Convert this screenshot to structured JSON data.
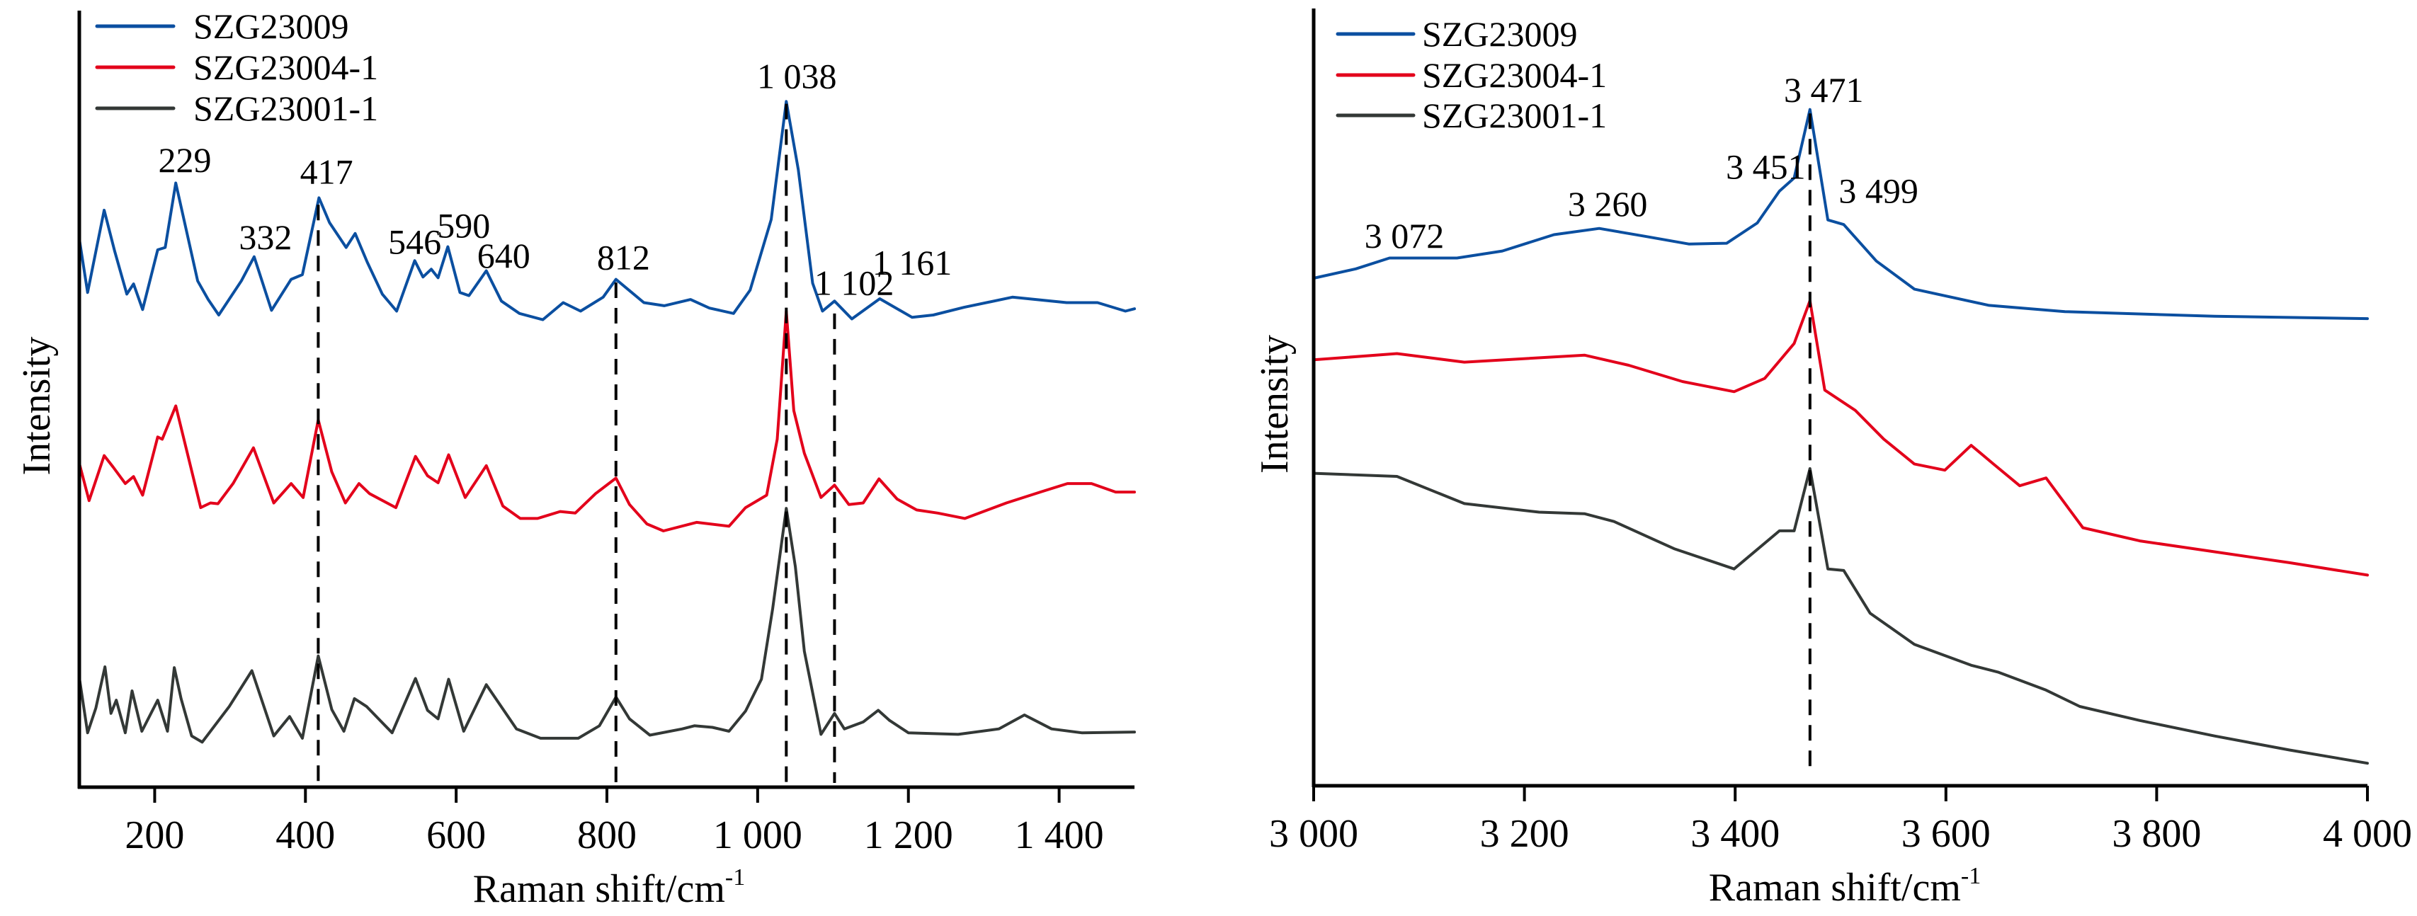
{
  "chart_data": [
    {
      "type": "line",
      "title": "",
      "xlabel": "Raman shift/cm",
      "xlabel_superscript": "-1",
      "ylabel": "Intensity",
      "xlim": [
        100,
        1500
      ],
      "ylim": [
        0,
        100
      ],
      "y_units": "normalized intensity (a.u., stacked/offset, no ticks shown)",
      "grid": false,
      "legend_position": "top-left",
      "x_ticks": [
        200,
        400,
        600,
        800,
        1000,
        1200,
        1400
      ],
      "x_tick_labels": [
        "200",
        "400",
        "600",
        "800",
        "1 000",
        "1 200",
        "1 400"
      ],
      "series": [
        {
          "name": "SZG23009",
          "color": "#0B4FA0",
          "x": [
            100,
            111,
            133,
            147,
            163,
            172,
            184,
            204,
            214,
            228,
            257,
            271,
            285,
            315,
            332,
            355,
            381,
            396,
            418,
            432,
            454,
            466,
            482,
            502,
            521,
            545,
            556,
            567,
            576,
            589,
            605,
            617,
            640,
            660,
            684,
            715,
            742,
            765,
            795,
            812,
            849,
            876,
            911,
            936,
            968,
            990,
            1018,
            1038,
            1054,
            1073,
            1086,
            1102,
            1125,
            1162,
            1205,
            1233,
            1274,
            1338,
            1410,
            1451,
            1488,
            1500
          ],
          "y": [
            70.6,
            63.7,
            74.3,
            69.0,
            63.5,
            64.8,
            61.5,
            69.2,
            69.5,
            77.8,
            65.2,
            62.8,
            60.8,
            65.2,
            68.3,
            61.4,
            65.4,
            66.0,
            75.9,
            72.7,
            69.5,
            71.3,
            67.6,
            63.5,
            61.3,
            67.8,
            65.7,
            66.7,
            65.6,
            69.6,
            63.7,
            63.3,
            66.5,
            62.6,
            61.0,
            60.2,
            62.4,
            61.3,
            63.1,
            65.4,
            62.4,
            62.0,
            62.8,
            61.7,
            61.0,
            64.0,
            73.1,
            88.3,
            79.5,
            64.9,
            61.3,
            62.6,
            60.3,
            62.9,
            60.5,
            60.8,
            61.8,
            63.1,
            62.4,
            62.4,
            61.3,
            61.6
          ]
        },
        {
          "name": "SZG23004-1",
          "color": "#E3001B",
          "x": [
            100,
            113,
            133,
            145,
            161,
            172,
            184,
            204,
            210,
            228,
            261,
            274,
            284,
            304,
            331,
            358,
            381,
            397,
            417,
            435,
            453,
            471,
            485,
            520,
            546,
            562,
            576,
            590,
            612,
            640,
            662,
            685,
            708,
            738,
            758,
            785,
            812,
            830,
            853,
            875,
            919,
            962,
            984,
            1012,
            1026,
            1038,
            1048,
            1062,
            1084,
            1102,
            1121,
            1140,
            1161,
            1185,
            1211,
            1239,
            1275,
            1330,
            1375,
            1411,
            1443,
            1475,
            1500
          ],
          "y": [
            41.7,
            36.9,
            42.7,
            41.2,
            39.1,
            40.0,
            37.6,
            45.1,
            44.8,
            49.1,
            36.0,
            36.6,
            36.5,
            39.1,
            43.7,
            36.6,
            39.1,
            37.3,
            47.3,
            40.6,
            36.6,
            39.1,
            37.8,
            36.0,
            42.6,
            40.1,
            39.2,
            42.8,
            37.3,
            41.4,
            36.2,
            34.6,
            34.6,
            35.5,
            35.3,
            37.8,
            39.8,
            36.4,
            33.9,
            33.0,
            34.1,
            33.6,
            36.0,
            37.6,
            44.8,
            61.3,
            48.5,
            43.0,
            37.3,
            38.9,
            36.4,
            36.6,
            39.7,
            37.1,
            35.7,
            35.3,
            34.6,
            36.6,
            38.0,
            39.1,
            39.1,
            38.0,
            38.0
          ]
        },
        {
          "name": "SZG23001-1",
          "color": "#333836",
          "x": [
            100,
            111,
            122,
            134,
            142,
            149,
            161,
            170,
            183,
            204,
            217,
            226,
            235,
            249,
            263,
            299,
            329,
            358,
            379,
            396,
            417,
            435,
            451,
            465,
            481,
            515,
            546,
            562,
            576,
            590,
            610,
            640,
            680,
            712,
            762,
            790,
            812,
            830,
            857,
            900,
            916,
            940,
            962,
            984,
            1005,
            1020,
            1038,
            1050,
            1062,
            1084,
            1102,
            1115,
            1140,
            1160,
            1175,
            1200,
            1266,
            1320,
            1354,
            1390,
            1430,
            1500
          ],
          "y": [
            14.1,
            7.0,
            10.2,
            15.5,
            9.5,
            11.2,
            7.0,
            12.4,
            7.2,
            11.2,
            7.2,
            15.4,
            11.4,
            6.6,
            5.8,
            10.4,
            15.0,
            6.6,
            9.1,
            6.3,
            16.9,
            10.0,
            7.2,
            11.4,
            10.4,
            7.0,
            14.0,
            9.9,
            8.8,
            13.9,
            7.2,
            13.2,
            7.5,
            6.3,
            6.3,
            7.9,
            11.6,
            8.8,
            6.7,
            7.5,
            7.9,
            7.7,
            7.2,
            9.8,
            13.9,
            23.0,
            35.9,
            28.4,
            17.5,
            6.8,
            9.5,
            7.5,
            8.4,
            9.9,
            8.6,
            7.0,
            6.8,
            7.5,
            9.3,
            7.5,
            7.0,
            7.1
          ]
        }
      ],
      "annotations": [
        {
          "text": "229",
          "x": 240,
          "y": 79.2
        },
        {
          "text": "332",
          "x": 347,
          "y": 69.3
        },
        {
          "text": "417",
          "x": 428,
          "y": 77.7
        },
        {
          "text": "546",
          "x": 545,
          "y": 68.7
        },
        {
          "text": "590",
          "x": 610,
          "y": 70.8
        },
        {
          "text": "640",
          "x": 663,
          "y": 66.9
        },
        {
          "text": "812",
          "x": 822,
          "y": 66.7
        },
        {
          "text": "1 038",
          "x": 1052,
          "y": 90.0
        },
        {
          "text": "1 102",
          "x": 1128,
          "y": 63.4
        },
        {
          "text": "1 161",
          "x": 1205,
          "y": 66.0
        }
      ],
      "reference_lines": [
        {
          "x": 417,
          "y_from": 75.0,
          "y_to": 0
        },
        {
          "x": 812,
          "y_from": 65.0,
          "y_to": 0
        },
        {
          "x": 1038,
          "y_from": 88.0,
          "y_to": 0
        },
        {
          "x": 1102,
          "y_from": 61.0,
          "y_to": 0
        }
      ]
    },
    {
      "type": "line",
      "title": "",
      "xlabel": "Raman shift/cm",
      "xlabel_superscript": "-1",
      "ylabel": "Intensity",
      "xlim": [
        3000,
        4000
      ],
      "ylim": [
        0,
        100
      ],
      "y_units": "normalized intensity (a.u., stacked/offset, no ticks shown)",
      "grid": false,
      "legend_position": "top-left",
      "x_ticks": [
        3000,
        3200,
        3400,
        3600,
        3800,
        4000
      ],
      "x_tick_labels": [
        "3 000",
        "3 200",
        "3 400",
        "3 600",
        "3 800",
        "4 000"
      ],
      "series": [
        {
          "name": "SZG23009",
          "color": "#0B4FA0",
          "x": [
            3000,
            3040,
            3072,
            3136,
            3179,
            3228,
            3271,
            3314,
            3356,
            3392,
            3421,
            3442,
            3456,
            3471,
            3488,
            3503,
            3534,
            3570,
            3641,
            3713,
            3855,
            4000
          ],
          "y": [
            65.3,
            66.5,
            67.9,
            67.9,
            68.8,
            70.9,
            71.7,
            70.7,
            69.7,
            69.8,
            72.4,
            76.5,
            78.2,
            87.0,
            72.8,
            72.2,
            67.5,
            63.9,
            61.8,
            61.0,
            60.4,
            60.1
          ]
        },
        {
          "name": "SZG23004-1",
          "color": "#E3001B",
          "x": [
            3000,
            3079,
            3143,
            3257,
            3299,
            3350,
            3399,
            3428,
            3456,
            3471,
            3485,
            3514,
            3541,
            3570,
            3599,
            3624,
            3645,
            3670,
            3695,
            3730,
            3784,
            3855,
            3926,
            4000
          ],
          "y": [
            54.8,
            55.6,
            54.5,
            55.4,
            54.1,
            52.0,
            50.7,
            52.4,
            56.9,
            62.4,
            50.9,
            48.3,
            44.6,
            41.4,
            40.6,
            43.8,
            41.4,
            38.6,
            39.6,
            33.2,
            31.5,
            30.1,
            28.7,
            27.1
          ]
        },
        {
          "name": "SZG23001-1",
          "color": "#333836",
          "x": [
            3000,
            3079,
            3143,
            3214,
            3257,
            3285,
            3342,
            3399,
            3442,
            3456,
            3471,
            3488,
            3503,
            3528,
            3570,
            3624,
            3650,
            3695,
            3727,
            3784,
            3855,
            3926,
            4000
          ],
          "y": [
            40.2,
            39.8,
            36.3,
            35.2,
            35.0,
            34.0,
            30.5,
            27.9,
            32.8,
            32.8,
            40.8,
            27.9,
            27.7,
            22.2,
            18.2,
            15.5,
            14.6,
            12.3,
            10.2,
            8.4,
            6.4,
            4.6,
            2.9
          ]
        }
      ],
      "annotations": [
        {
          "text": "3 072",
          "x": 3086,
          "y": 69.2
        },
        {
          "text": "3 260",
          "x": 3279,
          "y": 73.3
        },
        {
          "text": "3 451",
          "x": 3429,
          "y": 78.1
        },
        {
          "text": "3 471",
          "x": 3484,
          "y": 88.0
        },
        {
          "text": "3 499",
          "x": 3536,
          "y": 75.0
        }
      ],
      "reference_lines": [
        {
          "x": 3471,
          "y_from": 86.5,
          "y_to": 1.4
        }
      ]
    }
  ]
}
